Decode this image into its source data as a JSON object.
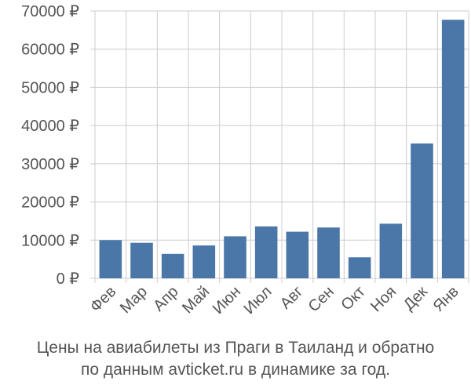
{
  "chart_data": {
    "type": "bar",
    "categories": [
      "Фев",
      "Мар",
      "Апр",
      "Май",
      "Июн",
      "Июл",
      "Авг",
      "Сен",
      "Окт",
      "Ноя",
      "Дек",
      "Янв"
    ],
    "values": [
      10000,
      9300,
      6400,
      8600,
      11000,
      13600,
      12200,
      13300,
      5500,
      14300,
      35300,
      67700
    ],
    "yticks": [
      0,
      10000,
      20000,
      30000,
      40000,
      50000,
      60000,
      70000
    ],
    "ytick_labels": [
      "0 ₽",
      "10000 ₽",
      "20000 ₽",
      "30000 ₽",
      "40000 ₽",
      "50000 ₽",
      "60000 ₽",
      "70000 ₽"
    ],
    "ylim": [
      0,
      70000
    ],
    "grid": "vertical and horizontal",
    "bar_color": "#4a76a8",
    "grid_color": "#cccccc"
  },
  "caption": {
    "line1": "Цены на авиабилеты из Праги в Таиланд и обратно",
    "line2": "по данным avticket.ru в динамике за год."
  }
}
